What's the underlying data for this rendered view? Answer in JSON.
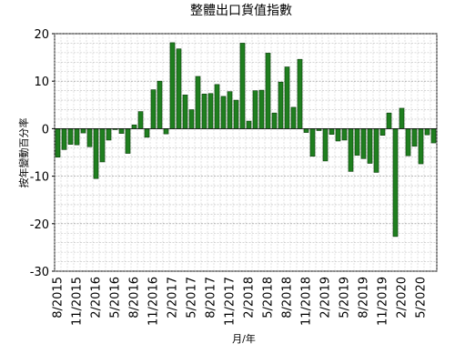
{
  "chart_data": {
    "type": "bar",
    "title": "整體出口貨值指數",
    "xlabel": "月/年",
    "ylabel": "按年變動百分率",
    "ylim": [
      -30,
      20
    ],
    "yticks": [
      -30,
      -20,
      -10,
      0,
      10,
      20
    ],
    "grid": true,
    "legend": "none",
    "bar_color": "#1f7f1f",
    "bar_edge": "#0a3a0a",
    "categories": [
      "8/2015",
      "9/2015",
      "10/2015",
      "11/2015",
      "12/2015",
      "1/2016",
      "2/2016",
      "3/2016",
      "4/2016",
      "5/2016",
      "6/2016",
      "7/2016",
      "8/2016",
      "9/2016",
      "10/2016",
      "11/2016",
      "12/2016",
      "1/2017",
      "2/2017",
      "3/2017",
      "4/2017",
      "5/2017",
      "6/2017",
      "7/2017",
      "8/2017",
      "9/2017",
      "10/2017",
      "11/2017",
      "12/2017",
      "1/2018",
      "2/2018",
      "3/2018",
      "4/2018",
      "5/2018",
      "6/2018",
      "7/2018",
      "8/2018",
      "9/2018",
      "10/2018",
      "11/2018",
      "12/2018",
      "1/2019",
      "2/2019",
      "3/2019",
      "4/2019",
      "5/2019",
      "6/2019",
      "7/2019",
      "8/2019",
      "9/2019",
      "10/2019",
      "11/2019",
      "12/2019",
      "1/2020",
      "2/2020",
      "3/2020",
      "4/2020",
      "5/2020",
      "6/2020",
      "7/2020"
    ],
    "tick_labels": [
      "8/2015",
      "11/2015",
      "2/2016",
      "5/2016",
      "8/2016",
      "11/2016",
      "2/2017",
      "5/2017",
      "8/2017",
      "11/2017",
      "2/2018",
      "5/2018",
      "8/2018",
      "11/2018",
      "2/2019",
      "5/2019",
      "8/2019",
      "11/2019",
      "2/2020",
      "5/2020"
    ],
    "values": [
      -6.0,
      -4.4,
      -3.3,
      -3.4,
      -0.9,
      -3.8,
      -10.5,
      -7.0,
      -2.4,
      -0.2,
      -1.0,
      -5.2,
      0.8,
      3.6,
      -1.8,
      8.2,
      10.0,
      -1.1,
      18.1,
      16.8,
      7.1,
      4.0,
      11.0,
      7.3,
      7.4,
      9.3,
      6.8,
      7.8,
      6.0,
      18.0,
      1.6,
      8.0,
      8.1,
      15.9,
      3.3,
      9.8,
      13.0,
      4.5,
      14.6,
      -0.8,
      -5.8,
      -0.4,
      -6.8,
      -1.2,
      -2.6,
      -2.4,
      -9.0,
      -5.6,
      -6.3,
      -7.3,
      -9.2,
      -1.4,
      3.3,
      -22.7,
      4.3,
      -5.7,
      -3.7,
      -7.4,
      -1.3,
      -3.0
    ]
  }
}
